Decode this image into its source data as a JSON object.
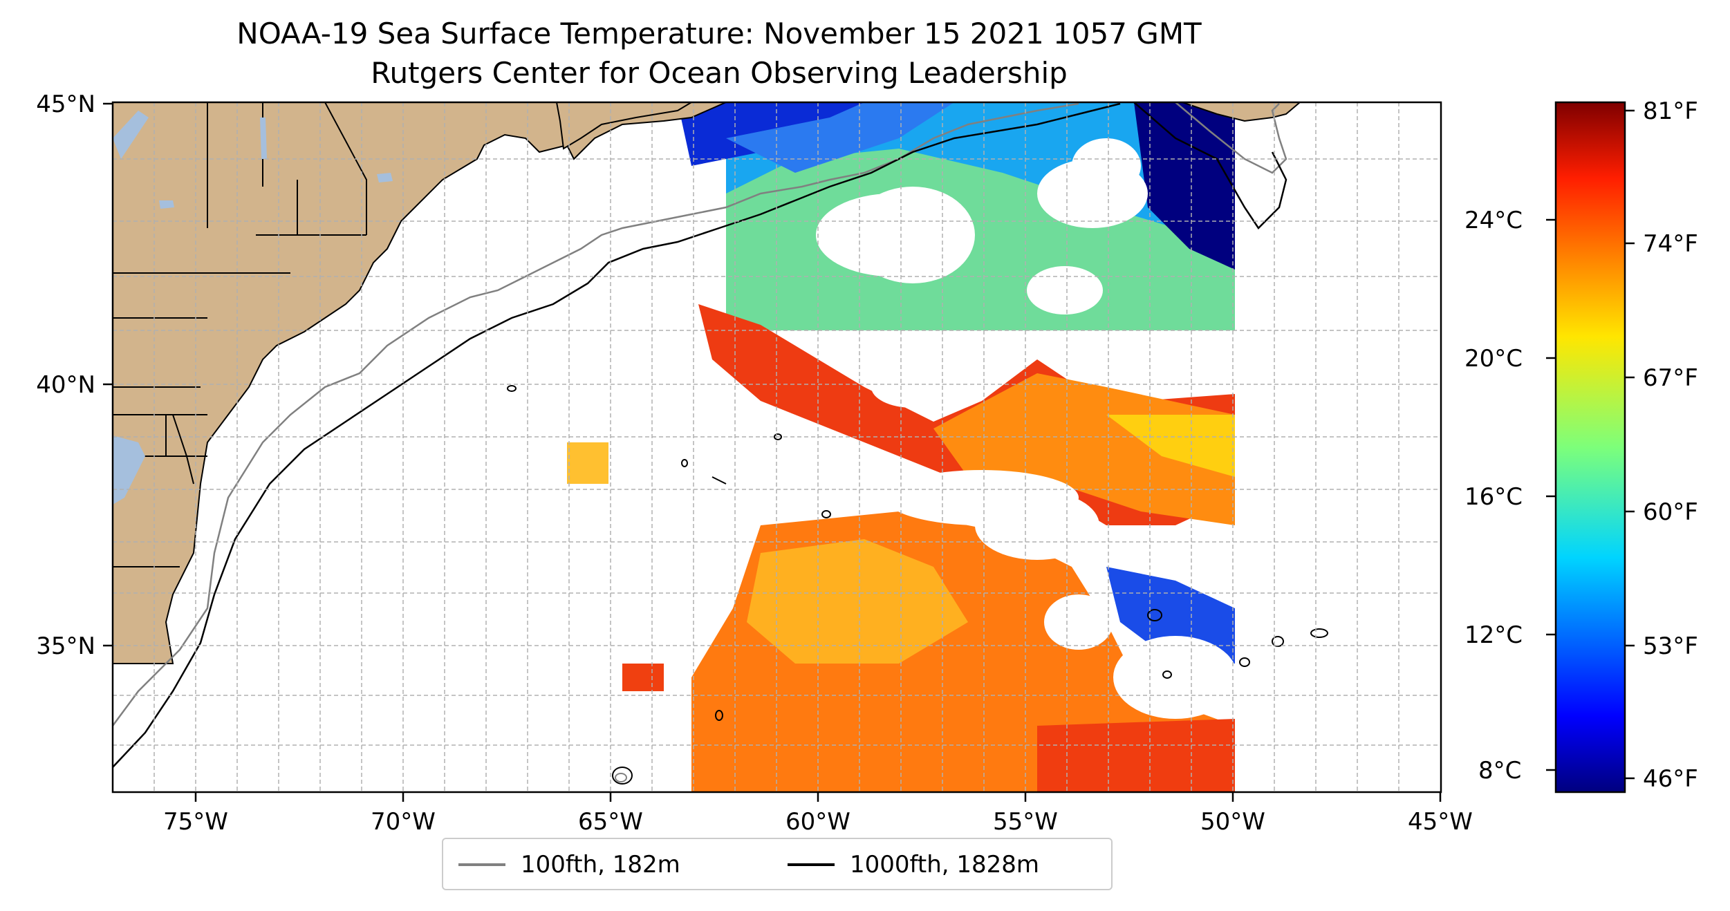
{
  "title": "NOAA-19 Sea Surface Temperature: November 15 2021 1057 GMT",
  "subtitle": "Rutgers Center for Ocean Observing Leadership",
  "axes": {
    "lon_ticks": [
      "75°W",
      "70°W",
      "65°W",
      "60°W",
      "55°W",
      "50°W",
      "45°W"
    ],
    "lat_ticks": [
      "45°N",
      "40°N",
      "35°N"
    ]
  },
  "colorbar": {
    "celsius_ticks": [
      "24°C",
      "20°C",
      "16°C",
      "12°C",
      "8°C"
    ],
    "fahrenheit_ticks": [
      "81°F",
      "74°F",
      "67°F",
      "60°F",
      "53°F",
      "46°F"
    ]
  },
  "legend": {
    "items": [
      {
        "label": "100fth, 182m",
        "color": "#808080"
      },
      {
        "label": "1000fth, 1828m",
        "color": "#000000"
      }
    ]
  },
  "colors": {
    "land": "#d2b48c",
    "lakes": "#a5bfdd"
  }
}
